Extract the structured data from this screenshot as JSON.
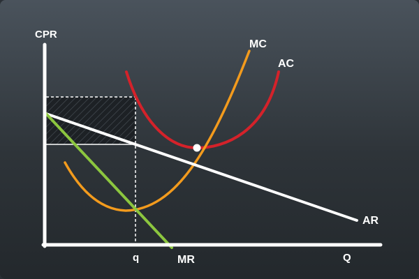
{
  "axes": {
    "y_label": "CPR",
    "x_label": "Q",
    "x_marker": "q"
  },
  "curves": {
    "mc": {
      "label": "MC",
      "color": "#f39b1d"
    },
    "ac": {
      "label": "AC",
      "color": "#d4222a"
    },
    "ar": {
      "label": "AR",
      "color": "#ffffff"
    },
    "mr": {
      "label": "MR",
      "color": "#8cc63f"
    }
  },
  "colors": {
    "axes": "#ffffff",
    "profit_hatch": "#1b1f23",
    "guides": "#ffffff"
  }
}
